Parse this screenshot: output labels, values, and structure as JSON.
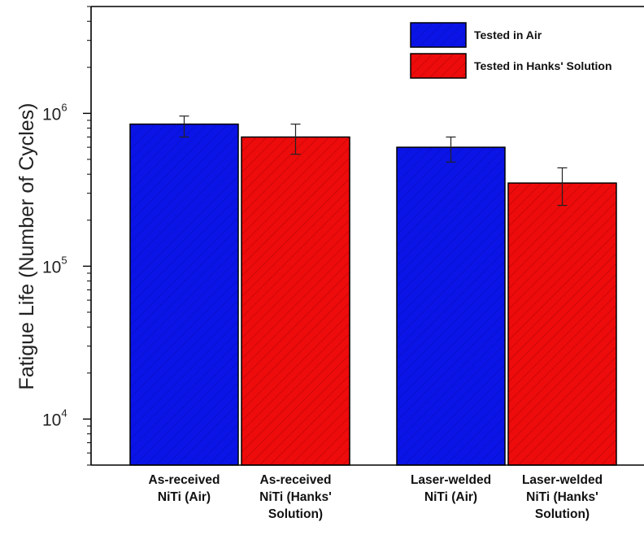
{
  "chart_data": {
    "type": "bar",
    "title": "",
    "xlabel": "",
    "ylabel": "Fatigue Life (Number of Cycles)",
    "yscale": "log",
    "ylim": [
      5000,
      5000000
    ],
    "y_ticks": [
      10000,
      100000,
      1000000
    ],
    "y_tick_labels": [
      {
        "base": "10",
        "exp": "4"
      },
      {
        "base": "10",
        "exp": "5"
      },
      {
        "base": "10",
        "exp": "6"
      }
    ],
    "grid": false,
    "legend_position": "top-right",
    "legend": [
      "Tested in Air",
      "Tested in Hanks' Solution"
    ],
    "colors": {
      "air": "#0a14e6",
      "hanks": "#ee0b0b"
    },
    "bars": [
      {
        "label_lines": [
          "As-received",
          "NiTi (Air)"
        ],
        "value": 850000,
        "error_low": 700000,
        "error_high": 960000,
        "series": "air"
      },
      {
        "label_lines": [
          "As-received",
          "NiTi (Hanks'",
          "Solution)"
        ],
        "value": 700000,
        "error_low": 540000,
        "error_high": 850000,
        "series": "hanks"
      },
      {
        "label_lines": [
          "Laser-welded",
          "NiTi (Air)"
        ],
        "value": 600000,
        "error_low": 480000,
        "error_high": 700000,
        "series": "air"
      },
      {
        "label_lines": [
          "Laser-welded",
          "NiTi (Hanks'",
          "Solution)"
        ],
        "value": 350000,
        "error_low": 250000,
        "error_high": 440000,
        "series": "hanks"
      }
    ]
  }
}
